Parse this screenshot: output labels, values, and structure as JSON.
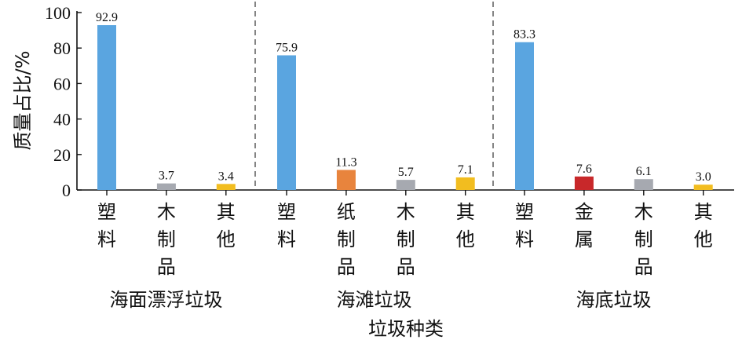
{
  "chart_data": {
    "type": "bar",
    "ylabel": "质量占比/%",
    "xlabel": "垃圾种类",
    "ylim": [
      0,
      100
    ],
    "yticks": [
      0,
      20,
      40,
      60,
      80,
      100
    ],
    "grid": false,
    "legend": "none",
    "colors": {
      "plastic": "#5aa5e0",
      "paper": "#e8843d",
      "wood": "#a6a9b0",
      "metal": "#c8282a",
      "other": "#f2bd1f"
    },
    "groups": [
      {
        "name": "海面漂浮垃圾",
        "bars": [
          {
            "category": "塑料",
            "value": 92.9,
            "value_label": "92.9",
            "color_key": "plastic"
          },
          {
            "category": "木制品",
            "value": 3.7,
            "value_label": "3.7",
            "color_key": "wood"
          },
          {
            "category": "其他",
            "value": 3.4,
            "value_label": "3.4",
            "color_key": "other"
          }
        ]
      },
      {
        "name": "海滩垃圾",
        "bars": [
          {
            "category": "塑料",
            "value": 75.9,
            "value_label": "75.9",
            "color_key": "plastic"
          },
          {
            "category": "纸制品",
            "value": 11.3,
            "value_label": "11.3",
            "color_key": "paper"
          },
          {
            "category": "木制品",
            "value": 5.7,
            "value_label": "5.7",
            "color_key": "wood"
          },
          {
            "category": "其他",
            "value": 7.1,
            "value_label": "7.1",
            "color_key": "other"
          }
        ]
      },
      {
        "name": "海底垃圾",
        "bars": [
          {
            "category": "塑料",
            "value": 83.3,
            "value_label": "83.3",
            "color_key": "plastic"
          },
          {
            "category": "金属",
            "value": 7.6,
            "value_label": "7.6",
            "color_key": "metal"
          },
          {
            "category": "木制品",
            "value": 6.1,
            "value_label": "6.1",
            "color_key": "wood"
          },
          {
            "category": "其他",
            "value": 3.0,
            "value_label": "3.0",
            "color_key": "other"
          }
        ]
      }
    ]
  }
}
